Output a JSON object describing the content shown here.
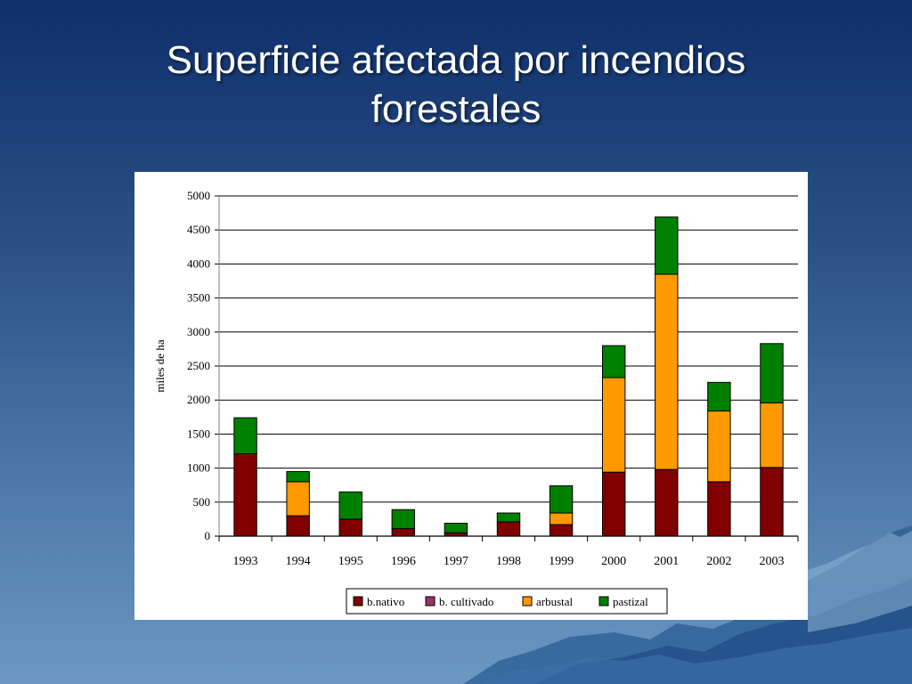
{
  "slide": {
    "title_line1": "Superficie afectada por incendios",
    "title_line2": "forestales"
  },
  "colors": {
    "b_nativo": "#800000",
    "b_cultivado": "#993366",
    "arbustal": "#ff9900",
    "pastizal": "#008000"
  },
  "chart_data": {
    "type": "bar",
    "stacked": true,
    "ylabel": "miles de ha",
    "xlabel": "",
    "ylim": [
      0,
      5000
    ],
    "yticks": [
      0,
      500,
      1000,
      1500,
      2000,
      2500,
      3000,
      3500,
      4000,
      4500,
      5000
    ],
    "grid": true,
    "legend_position": "bottom",
    "categories": [
      "1993",
      "1994",
      "1995",
      "1996",
      "1997",
      "1998",
      "1999",
      "2000",
      "2001",
      "2002",
      "2003"
    ],
    "series": [
      {
        "name": "b.nativo",
        "color": "#800000",
        "values": [
          1210,
          300,
          250,
          110,
          50,
          210,
          170,
          940,
          980,
          800,
          1010
        ]
      },
      {
        "name": "b. cultivado",
        "color": "#993366",
        "values": [
          0,
          0,
          0,
          0,
          0,
          0,
          0,
          0,
          0,
          0,
          0
        ]
      },
      {
        "name": "arbustal",
        "color": "#ff9900",
        "values": [
          0,
          500,
          0,
          0,
          0,
          0,
          170,
          1390,
          2870,
          1040,
          950
        ]
      },
      {
        "name": "pastizal",
        "color": "#008000",
        "values": [
          530,
          150,
          400,
          280,
          140,
          130,
          400,
          470,
          840,
          420,
          870
        ]
      }
    ]
  }
}
